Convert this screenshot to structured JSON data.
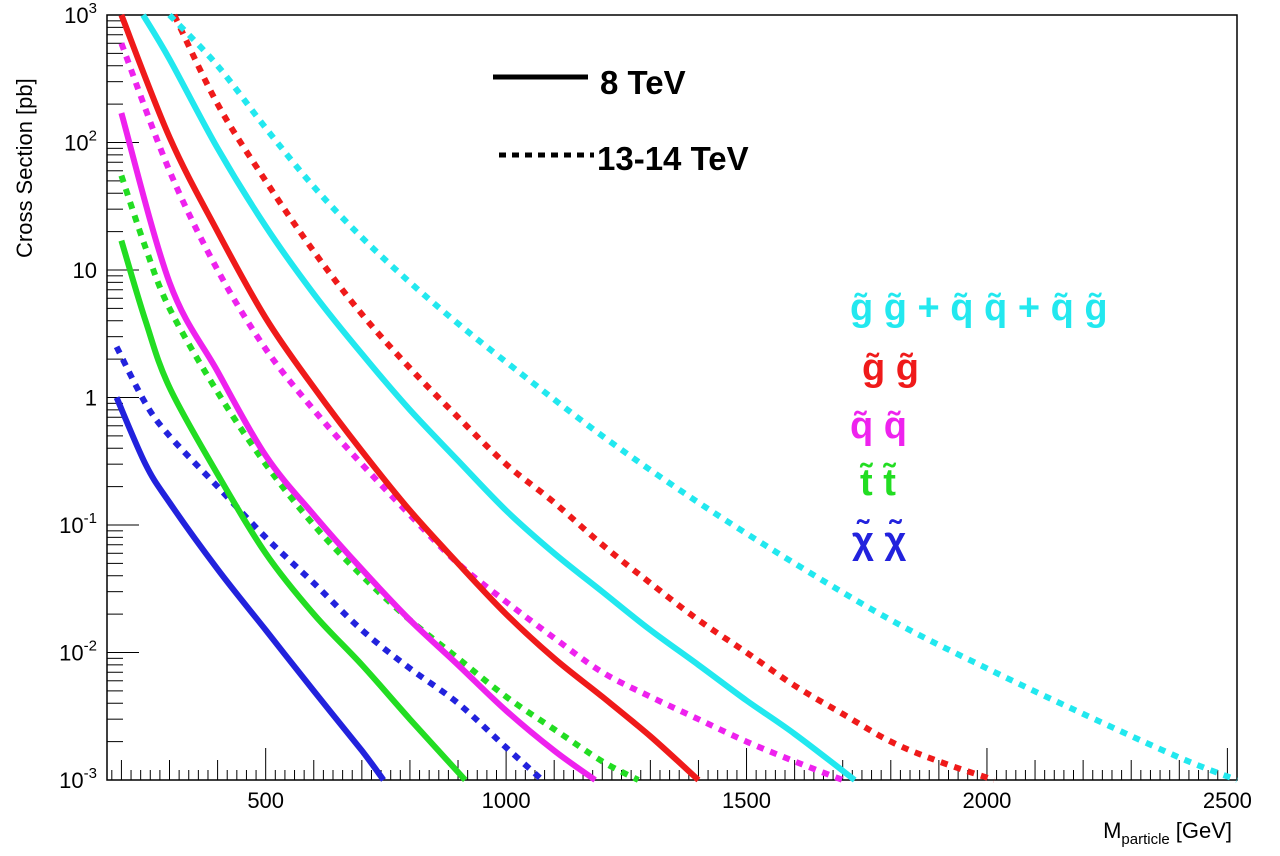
{
  "chart_data": {
    "type": "line",
    "xlabel": "M",
    "xlabel_sub": "particle",
    "xlabel_unit": "[GeV]",
    "ylabel": "Cross Section [pb]",
    "xlim": [
      170,
      2520
    ],
    "ylim": [
      0.001,
      1000
    ],
    "yscale": "log",
    "grid": false,
    "x_ticks": [
      500,
      1000,
      1500,
      2000,
      2500
    ],
    "x_tick_labels": [
      "500",
      "1000",
      "1500",
      "2000",
      "2500"
    ],
    "y_ticks": [
      {
        "value": 0.001,
        "base": "10",
        "exp": "-3"
      },
      {
        "value": 0.01,
        "base": "10",
        "exp": "-2"
      },
      {
        "value": 0.1,
        "base": "10",
        "exp": "-1"
      },
      {
        "value": 1,
        "base": "1",
        "exp": ""
      },
      {
        "value": 10,
        "base": "10",
        "exp": ""
      },
      {
        "value": 100,
        "base": "10",
        "exp": "2"
      },
      {
        "value": 1000,
        "base": "10",
        "exp": "3"
      }
    ],
    "legend_styles": [
      {
        "label": "8 TeV",
        "style": "solid"
      },
      {
        "label": "13-14 TeV",
        "style": "dotted"
      }
    ],
    "process_labels": [
      {
        "text": "g̃ g̃ + q̃ q̃ + q̃ g̃",
        "color": "#22e8ef"
      },
      {
        "text": "g̃ g̃",
        "color": "#ef1a1a"
      },
      {
        "text": "q̃ q̃",
        "color": "#ee22ee"
      },
      {
        "text": "t̃ t̃",
        "color": "#22dd22"
      },
      {
        "text": "χ̃ χ̃",
        "color": "#2222dd"
      }
    ],
    "series": [
      {
        "process": "chi-chi",
        "energy": "8 TeV",
        "style": "solid",
        "color": "#2222dd",
        "x": [
          190,
          250,
          300,
          400,
          500,
          600,
          700,
          745
        ],
        "y": [
          1.0,
          0.3,
          0.15,
          0.045,
          0.015,
          0.005,
          0.0017,
          0.001
        ]
      },
      {
        "process": "chi-chi",
        "energy": "13-14 TeV",
        "style": "dotted",
        "color": "#2222dd",
        "x": [
          190,
          250,
          300,
          400,
          500,
          600,
          700,
          800,
          900,
          1000,
          1075
        ],
        "y": [
          2.5,
          0.9,
          0.5,
          0.2,
          0.08,
          0.035,
          0.015,
          0.0075,
          0.004,
          0.0018,
          0.001
        ]
      },
      {
        "process": "stop-stop",
        "energy": "8 TeV",
        "style": "solid",
        "color": "#22dd22",
        "x": [
          200,
          250,
          300,
          400,
          500,
          600,
          700,
          800,
          915
        ],
        "y": [
          17,
          4,
          1.2,
          0.25,
          0.06,
          0.02,
          0.008,
          0.003,
          0.001
        ]
      },
      {
        "process": "stop-stop",
        "energy": "13-14 TeV",
        "style": "dotted",
        "color": "#22dd22",
        "x": [
          200,
          250,
          300,
          400,
          500,
          600,
          700,
          800,
          900,
          1000,
          1100,
          1200,
          1275
        ],
        "y": [
          55,
          15,
          5,
          1.1,
          0.3,
          0.1,
          0.04,
          0.018,
          0.009,
          0.0045,
          0.0025,
          0.0014,
          0.001
        ]
      },
      {
        "process": "squark-squark",
        "energy": "8 TeV",
        "style": "solid",
        "color": "#ee22ee",
        "x": [
          200,
          300,
          400,
          500,
          600,
          700,
          800,
          900,
          1000,
          1100,
          1185
        ],
        "y": [
          170,
          8,
          1.6,
          0.35,
          0.12,
          0.045,
          0.018,
          0.008,
          0.0035,
          0.0017,
          0.001
        ]
      },
      {
        "process": "squark-squark",
        "energy": "13-14 TeV",
        "style": "dotted",
        "color": "#ee22ee",
        "x": [
          200,
          300,
          400,
          500,
          600,
          700,
          800,
          900,
          1000,
          1100,
          1200,
          1300,
          1400,
          1500,
          1600,
          1700
        ],
        "y": [
          600,
          60,
          10,
          2.4,
          0.8,
          0.3,
          0.12,
          0.05,
          0.025,
          0.013,
          0.007,
          0.0045,
          0.003,
          0.002,
          0.0014,
          0.001
        ]
      },
      {
        "process": "gluino-gluino",
        "energy": "8 TeV",
        "style": "solid",
        "color": "#ef1a1a",
        "x": [
          200,
          300,
          400,
          500,
          600,
          700,
          800,
          900,
          1000,
          1100,
          1200,
          1300,
          1400
        ],
        "y": [
          1000,
          110,
          20,
          4.2,
          1.2,
          0.38,
          0.13,
          0.05,
          0.02,
          0.009,
          0.0045,
          0.0022,
          0.001
        ]
      },
      {
        "process": "gluino-gluino",
        "energy": "13-14 TeV",
        "style": "dotted",
        "color": "#ef1a1a",
        "x": [
          310,
          400,
          500,
          600,
          700,
          800,
          900,
          1000,
          1100,
          1200,
          1300,
          1400,
          1500,
          1600,
          1700,
          1800,
          1900,
          2015
        ],
        "y": [
          1000,
          200,
          50,
          14,
          4.5,
          1.7,
          0.7,
          0.3,
          0.15,
          0.07,
          0.035,
          0.018,
          0.01,
          0.0055,
          0.0033,
          0.002,
          0.0014,
          0.001
        ]
      },
      {
        "process": "all-strong",
        "energy": "8 TeV",
        "style": "solid",
        "color": "#22e8ef",
        "x": [
          245,
          300,
          400,
          500,
          600,
          700,
          800,
          900,
          1000,
          1100,
          1200,
          1300,
          1400,
          1500,
          1600,
          1725
        ],
        "y": [
          1000,
          450,
          90,
          22,
          6.5,
          2.2,
          0.8,
          0.32,
          0.13,
          0.06,
          0.03,
          0.015,
          0.008,
          0.0042,
          0.0023,
          0.001
        ]
      },
      {
        "process": "all-strong",
        "energy": "13-14 TeV",
        "style": "dotted",
        "color": "#22e8ef",
        "x": [
          300,
          400,
          500,
          600,
          700,
          800,
          900,
          1000,
          1200,
          1400,
          1600,
          1800,
          2000,
          2200,
          2400,
          2520
        ],
        "y": [
          1000,
          400,
          130,
          45,
          18,
          8,
          3.8,
          1.9,
          0.5,
          0.15,
          0.05,
          0.018,
          0.0075,
          0.0033,
          0.0015,
          0.001
        ]
      }
    ]
  }
}
